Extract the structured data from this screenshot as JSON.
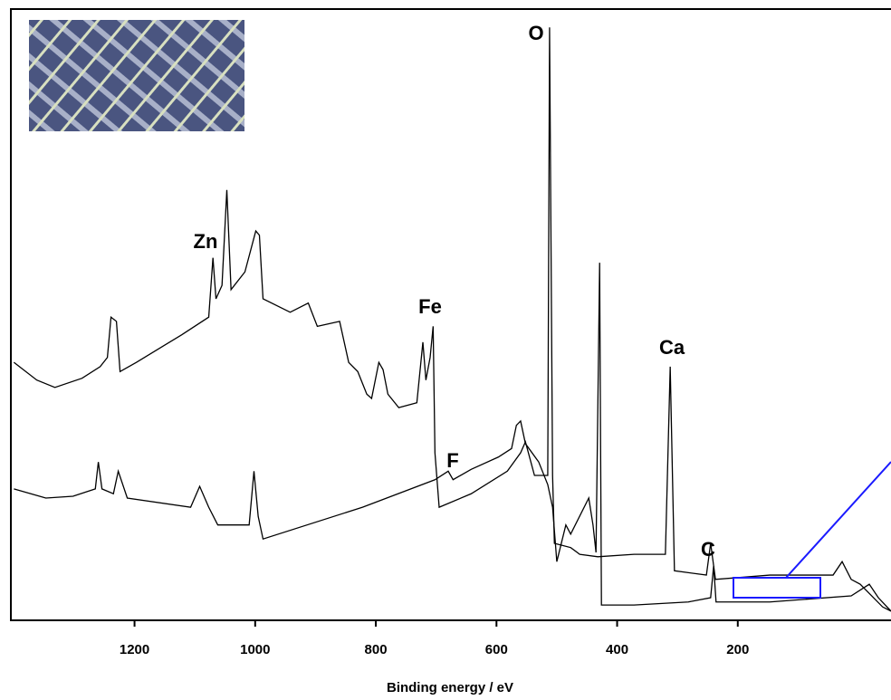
{
  "chart_data": {
    "type": "line",
    "xlabel": "Binding energy / eV",
    "xlim": [
      1405,
      -54
    ],
    "xticks": [
      1200,
      1000,
      800,
      600,
      400,
      200
    ],
    "ylim": [
      0,
      100
    ],
    "annotations": [
      "O",
      "Zn",
      "Fe",
      "F",
      "Ca",
      "C"
    ],
    "series": [
      {
        "color": "#000000",
        "x": [
          1400,
          1362,
          1332,
          1287,
          1257,
          1245,
          1239,
          1230,
          1224,
          1197,
          1122,
          1077,
          1070,
          1065,
          1055,
          1047,
          1040,
          1017,
          999,
          993,
          987,
          942,
          912,
          897,
          860,
          845,
          830,
          815,
          807,
          795,
          788,
          780,
          762,
          732,
          722,
          717,
          710,
          705,
          702,
          695,
          642,
          582,
          560,
          552,
          537,
          515,
          512,
          507,
          504,
          477,
          462,
          432,
          372,
          320,
          312,
          305,
          252,
          245,
          237,
          147,
          72,
          42,
          27,
          12,
          -3,
          -18,
          -40,
          -54
        ],
        "values": [
          42.2,
          39.3,
          38.1,
          39.6,
          41.5,
          43.0,
          49.6,
          48.9,
          40.7,
          42.2,
          46.7,
          49.6,
          59.3,
          52.6,
          54.8,
          70.4,
          54.1,
          57.0,
          63.7,
          63.0,
          52.6,
          50.4,
          51.9,
          48.1,
          48.9,
          42.2,
          40.7,
          37.0,
          36.3,
          42.2,
          41.0,
          37.0,
          34.8,
          35.6,
          45.5,
          39.3,
          43.0,
          48.1,
          27.4,
          18.5,
          20.7,
          24.4,
          27.4,
          29.2,
          23.7,
          23.7,
          97.0,
          23.7,
          12.6,
          11.9,
          10.8,
          10.4,
          10.8,
          10.8,
          41.5,
          8.1,
          7.4,
          12.6,
          6.7,
          7.4,
          7.4,
          7.4,
          9.6,
          6.7,
          5.9,
          4.4,
          2.2,
          1.5
        ]
      },
      {
        "color": "#000000",
        "x": [
          1400,
          1347,
          1302,
          1265,
          1260,
          1254,
          1235,
          1227,
          1212,
          1107,
          1092,
          1077,
          1062,
          1010,
          1002,
          995,
          987,
          822,
          702,
          680,
          672,
          642,
          597,
          575,
          567,
          560,
          552,
          530,
          515,
          507,
          500,
          485,
          477,
          447,
          440,
          435,
          429,
          426,
          372,
          282,
          245,
          240,
          236,
          147,
          12,
          -18,
          -33,
          -54
        ],
        "values": [
          21.5,
          20.0,
          20.3,
          21.5,
          25.9,
          21.5,
          20.7,
          24.4,
          20.0,
          18.5,
          21.9,
          18.5,
          15.6,
          15.6,
          24.4,
          17.0,
          13.3,
          18.5,
          23.0,
          24.4,
          23.0,
          24.7,
          26.7,
          28.1,
          31.9,
          32.6,
          28.9,
          25.9,
          22.2,
          18.5,
          9.6,
          15.6,
          14.1,
          20.0,
          15.6,
          11.1,
          58.5,
          2.5,
          2.5,
          3.0,
          3.7,
          8.9,
          3.0,
          3.0,
          4.0,
          5.9,
          3.7,
          1.5
        ]
      }
    ]
  }
}
